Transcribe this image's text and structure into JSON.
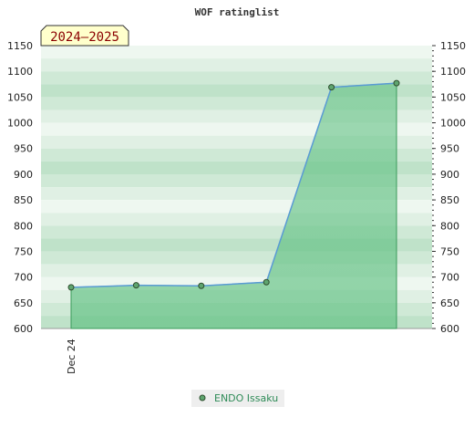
{
  "chart_data": {
    "type": "area",
    "title": "WOF ratinglist",
    "season_label": "2024–2025",
    "x_tick_labels": [
      "Dec 24"
    ],
    "ylim": [
      600,
      1150
    ],
    "yticks": [
      600,
      650,
      700,
      750,
      800,
      850,
      900,
      950,
      1000,
      1050,
      1100,
      1150
    ],
    "series": [
      {
        "name": "ENDO Issaku",
        "values": [
          680,
          684,
          683,
          690,
          1069,
          1077
        ]
      }
    ],
    "legend_position": "bottom-center",
    "colors": {
      "line": "#5a9bd5",
      "area": "#5cbf7f",
      "marker": "#5fa56f",
      "legend_text": "#2e8b57",
      "season_text": "#8b0000",
      "season_bg": "#ffffcc"
    }
  }
}
